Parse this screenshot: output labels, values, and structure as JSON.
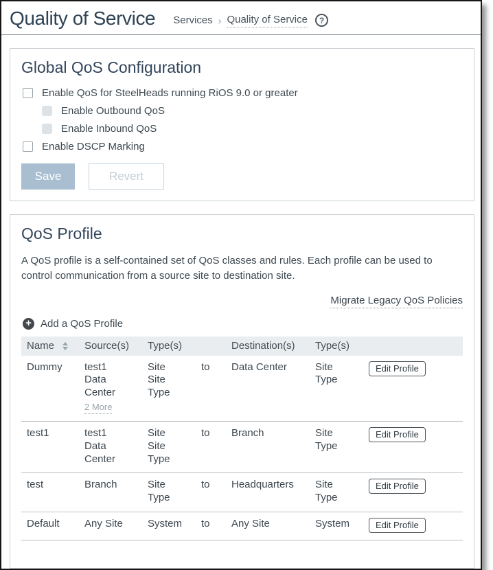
{
  "page": {
    "title": "Quality of Service",
    "breadcrumb": {
      "parent": "Services",
      "separator": "›",
      "current": "Quality of Service"
    }
  },
  "icons": {
    "help": "?",
    "add": "+"
  },
  "colors": {
    "heading": "#32455a",
    "body_text": "#3d4850",
    "muted": "#98a2a9",
    "save_button_bg": "#a9bfd1",
    "table_header_bg": "#e9edf0",
    "panel_border": "#c9ced2",
    "row_border": "#b9c0c5"
  },
  "global_qos": {
    "heading": "Global QoS Configuration",
    "checkboxes": [
      {
        "label": "Enable QoS for SteelHeads running RiOS 9.0 or greater",
        "checked": false,
        "disabled": false
      },
      {
        "label": "Enable Outbound QoS",
        "checked": false,
        "disabled": true
      },
      {
        "label": "Enable Inbound QoS",
        "checked": false,
        "disabled": true
      },
      {
        "label": "Enable DSCP Marking",
        "checked": false,
        "disabled": false
      }
    ],
    "save_label": "Save",
    "revert_label": "Revert"
  },
  "qos_profile": {
    "heading": "QoS Profile",
    "description": "A QoS profile is a self-contained set of QoS classes and rules. Each profile can be used to control communication from a source site to destination site.",
    "migrate_link": "Migrate Legacy QoS Policies",
    "add_label": "Add a QoS Profile",
    "table": {
      "headers": [
        "Name",
        "Source(s)",
        "Type(s)",
        "",
        "Destination(s)",
        "Type(s)",
        ""
      ],
      "rows": [
        {
          "name": "Dummy",
          "sources": [
            "test1",
            "Data Center"
          ],
          "more_link": "2 More",
          "source_types": [
            "Site",
            "Site Type"
          ],
          "to": "to",
          "destinations": [
            "Data Center"
          ],
          "dest_types": [
            "Site Type"
          ],
          "edit_label": "Edit Profile"
        },
        {
          "name": "test1",
          "sources": [
            "test1",
            "Data Center"
          ],
          "source_types": [
            "Site",
            "Site Type"
          ],
          "to": "to",
          "destinations": [
            "Branch"
          ],
          "dest_types": [
            "Site Type"
          ],
          "edit_label": "Edit Profile"
        },
        {
          "name": "test",
          "sources": [
            "Branch"
          ],
          "source_types": [
            "Site Type"
          ],
          "to": "to",
          "destinations": [
            "Headquarters"
          ],
          "dest_types": [
            "Site Type"
          ],
          "edit_label": "Edit Profile"
        },
        {
          "name": "Default",
          "sources": [
            "Any Site"
          ],
          "source_types": [
            "System"
          ],
          "to": "to",
          "destinations": [
            "Any Site"
          ],
          "dest_types": [
            "System"
          ],
          "edit_label": "Edit Profile"
        }
      ]
    }
  }
}
